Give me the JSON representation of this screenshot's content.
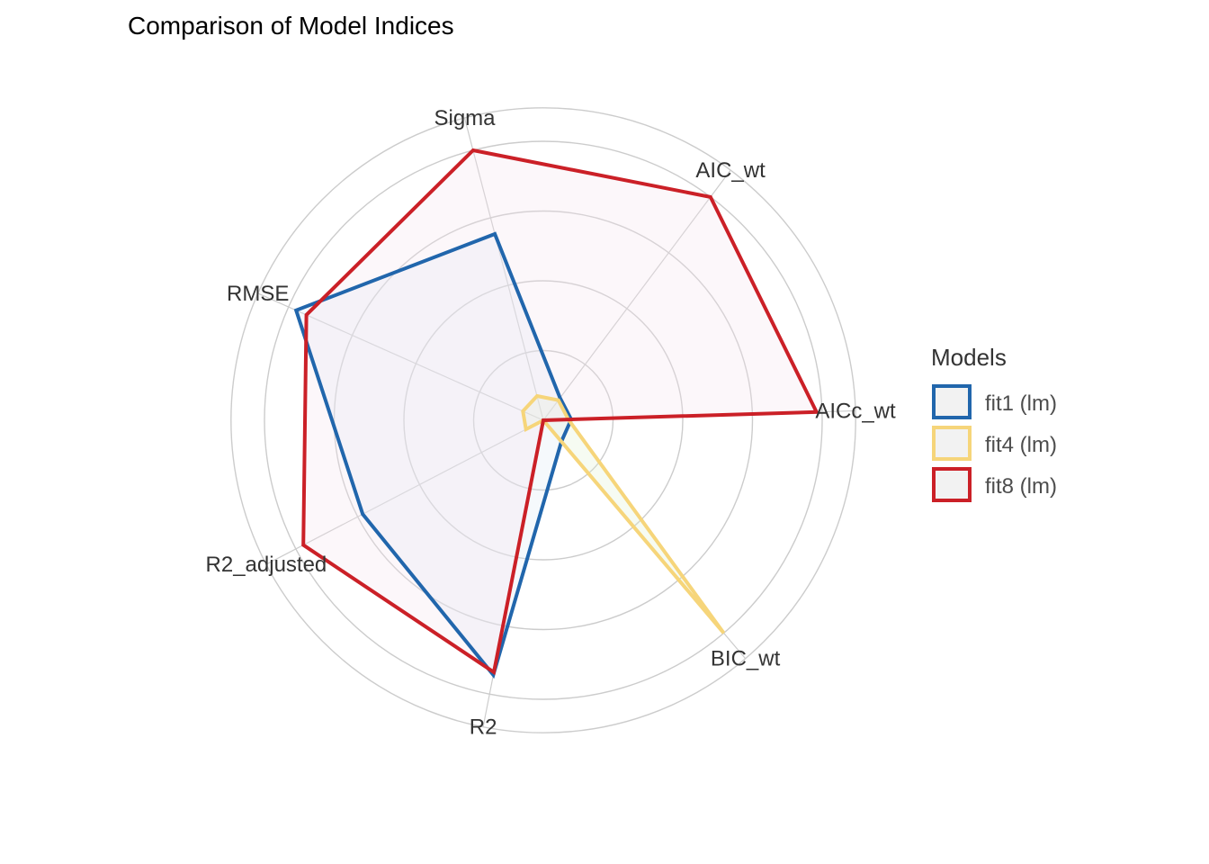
{
  "chart_data": {
    "type": "radar",
    "title": "Comparison of Model Indices",
    "axes": [
      "Sigma",
      "AIC_wt",
      "AICc_wt",
      "BIC_wt",
      "R2",
      "R2_adjusted",
      "RMSE"
    ],
    "rlim": [
      0,
      1
    ],
    "grid": true,
    "legend": {
      "title": "Models",
      "position": "right"
    },
    "series": [
      {
        "name": "fit1 (lm)",
        "color": "#2166AC",
        "fill": "#DCE8F6",
        "values": [
          0.69,
          0.1,
          0.1,
          0.1,
          0.93,
          0.73,
          0.97
        ]
      },
      {
        "name": "fit4 (lm)",
        "color": "#F6D57A",
        "fill": "#DDEFD0",
        "values": [
          0.09,
          0.09,
          0.09,
          1.0,
          0.0,
          0.07,
          0.08
        ]
      },
      {
        "name": "fit8 (lm)",
        "color": "#CB2027",
        "fill": "#F3E3EE",
        "values": [
          1.0,
          1.0,
          0.98,
          0.0,
          0.92,
          0.97,
          0.93
        ]
      }
    ]
  }
}
